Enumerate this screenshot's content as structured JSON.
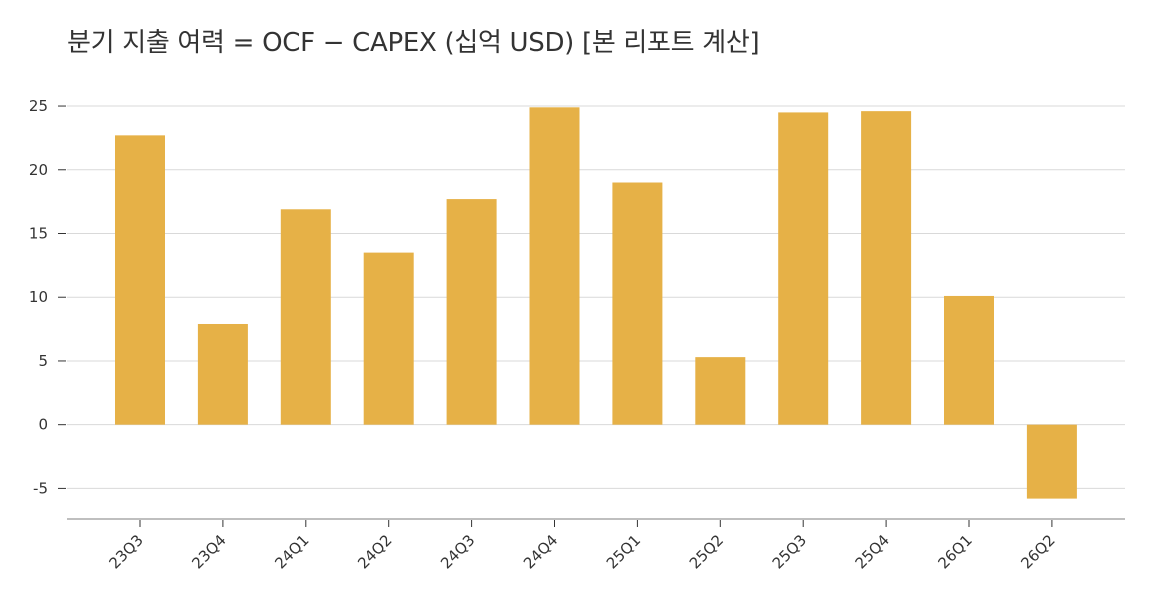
{
  "chart_data": {
    "type": "bar",
    "title": "분기 지출 여력 = OCF − CAPEX (십억 USD) [본 리포트 계산]",
    "xlabel": "",
    "ylabel": "",
    "categories": [
      "23Q3",
      "23Q4",
      "24Q1",
      "24Q2",
      "24Q3",
      "24Q4",
      "25Q1",
      "25Q2",
      "25Q3",
      "25Q4",
      "26Q1",
      "26Q2"
    ],
    "values": [
      22.7,
      7.9,
      16.9,
      13.5,
      17.7,
      24.9,
      19.0,
      5.3,
      24.5,
      24.6,
      10.1,
      -5.8
    ],
    "ylim": [
      -7.4,
      27.2
    ],
    "yticks": [
      -5,
      0,
      5,
      10,
      15,
      20,
      25
    ],
    "grid": true,
    "bar_color": "#e6b147",
    "grid_color": "#d9d9d9",
    "axis_color": "#999999"
  }
}
